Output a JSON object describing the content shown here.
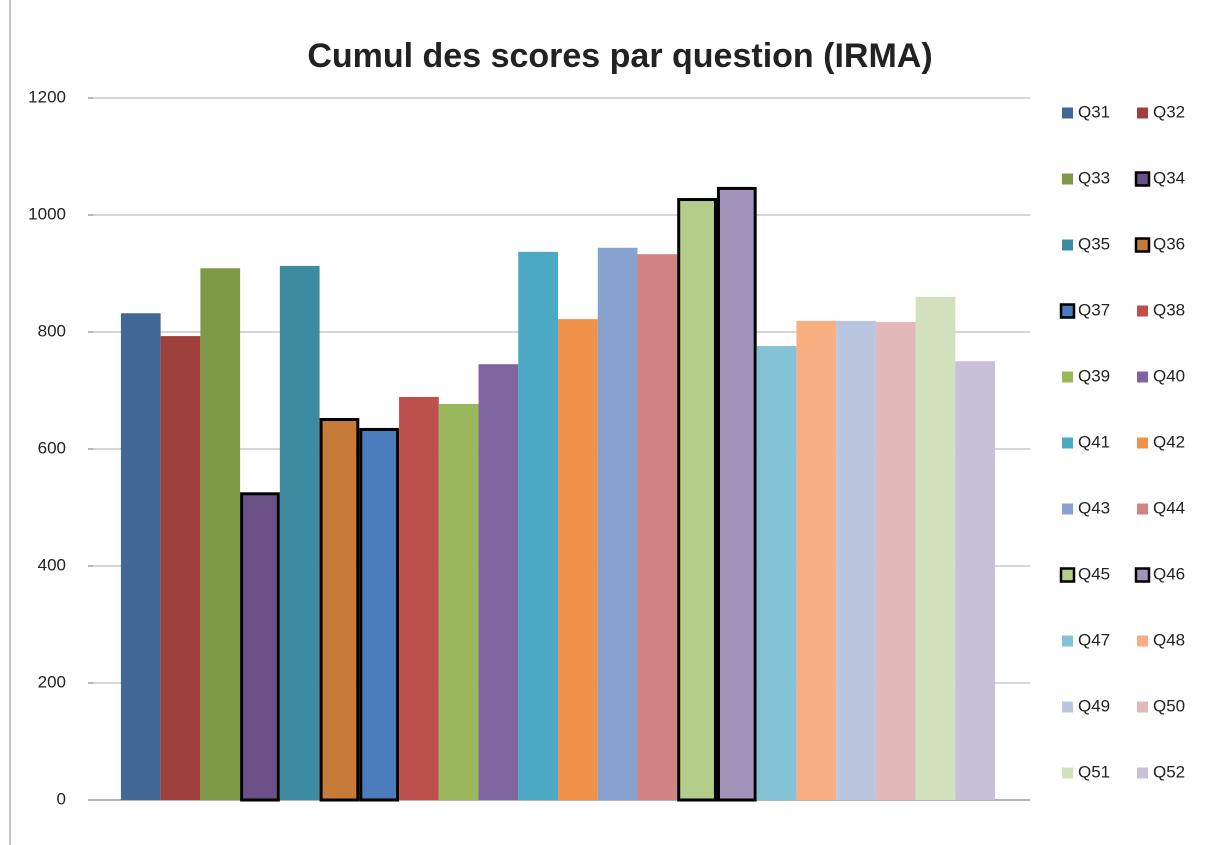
{
  "chart_data": {
    "type": "bar",
    "title": "Cumul des scores par question (IRMA)",
    "categories": [
      null
    ],
    "series": [
      {
        "name": "Q31",
        "color": "#416895",
        "values": [
          832
        ]
      },
      {
        "name": "Q32",
        "color": "#a0403d",
        "values": [
          793
        ]
      },
      {
        "name": "Q33",
        "color": "#7e9a48",
        "values": [
          909
        ]
      },
      {
        "name": "Q34",
        "color": "#6b5187",
        "edgecolor": "#000000",
        "values": [
          526
        ]
      },
      {
        "name": "Q35",
        "color": "#3c8ba1",
        "values": [
          913
        ]
      },
      {
        "name": "Q36",
        "color": "#c77b3a",
        "edgecolor": "#000000",
        "values": [
          653
        ]
      },
      {
        "name": "Q37",
        "color": "#4b7cbb",
        "edgecolor": "#000000",
        "values": [
          636
        ]
      },
      {
        "name": "Q38",
        "color": "#bd4f4c",
        "values": [
          689
        ]
      },
      {
        "name": "Q39",
        "color": "#9ab85b",
        "values": [
          677
        ]
      },
      {
        "name": "Q40",
        "color": "#7f65a0",
        "values": [
          745
        ]
      },
      {
        "name": "Q41",
        "color": "#4ba9c3",
        "values": [
          937
        ]
      },
      {
        "name": "Q42",
        "color": "#f0924a",
        "values": [
          822
        ]
      },
      {
        "name": "Q43",
        "color": "#88a2cf",
        "values": [
          944
        ]
      },
      {
        "name": "Q44",
        "color": "#d08380",
        "values": [
          933
        ]
      },
      {
        "name": "Q45",
        "color": "#b4cd8a",
        "edgecolor": "#000000",
        "values": [
          1029
        ]
      },
      {
        "name": "Q46",
        "color": "#a293bb",
        "edgecolor": "#000000",
        "values": [
          1048
        ]
      },
      {
        "name": "Q47",
        "color": "#84c2d5",
        "values": [
          776
        ]
      },
      {
        "name": "Q48",
        "color": "#f8ae80",
        "values": [
          819
        ]
      },
      {
        "name": "Q49",
        "color": "#bac6df",
        "values": [
          819
        ]
      },
      {
        "name": "Q50",
        "color": "#e2b9b8",
        "values": [
          817
        ]
      },
      {
        "name": "Q51",
        "color": "#d2e0bc",
        "values": [
          860
        ]
      },
      {
        "name": "Q52",
        "color": "#c8bfd8",
        "values": [
          750
        ]
      }
    ],
    "ylim": [
      0,
      1200
    ],
    "yticks": [
      0,
      200,
      400,
      600,
      800,
      1000,
      1200
    ],
    "grid": true,
    "legend": "right"
  }
}
